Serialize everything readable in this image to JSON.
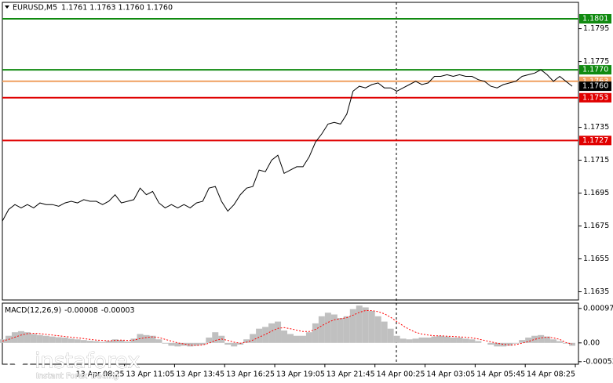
{
  "header": {
    "symbol": "EURUSD,M5",
    "ohlc": "1.1761 1.1763 1.1760 1.1760"
  },
  "watermark": {
    "name": "instaforex",
    "tagline": "Instant Forex Trading"
  },
  "chart_data": [
    {
      "type": "line",
      "color": "#000000",
      "values": [
        1.1678,
        1.1685,
        1.1688,
        1.1686,
        1.1688,
        1.1686,
        1.1689,
        1.1688,
        1.1688,
        1.1687,
        1.1689,
        1.169,
        1.1689,
        1.1691,
        1.169,
        1.169,
        1.1688,
        1.169,
        1.1694,
        1.1689,
        1.169,
        1.1691,
        1.1698,
        1.1694,
        1.1696,
        1.1689,
        1.1686,
        1.1688,
        1.1686,
        1.1688,
        1.1686,
        1.1689,
        1.169,
        1.1698,
        1.1699,
        1.169,
        1.1684,
        1.1688,
        1.1694,
        1.1698,
        1.1699,
        1.1709,
        1.1708,
        1.1715,
        1.1718,
        1.1707,
        1.1709,
        1.1711,
        1.1711,
        1.1717,
        1.1726,
        1.1731,
        1.1737,
        1.1738,
        1.1737,
        1.1743,
        1.1757,
        1.176,
        1.1759,
        1.1761,
        1.1762,
        1.1759,
        1.1759,
        1.1757,
        1.1759,
        1.1761,
        1.1763,
        1.1761,
        1.1762,
        1.1766,
        1.1766,
        1.1767,
        1.1766,
        1.1767,
        1.1766,
        1.1766,
        1.1764,
        1.1763,
        1.176,
        1.1759,
        1.1761,
        1.1762,
        1.1763,
        1.1766,
        1.1767,
        1.1768,
        1.177,
        1.1767,
        1.1763,
        1.1766,
        1.1763,
        1.176
      ],
      "xlim": [
        0,
        92
      ],
      "ylim": [
        1.163,
        1.1811
      ],
      "yticks": [
        1.1795,
        1.1775,
        1.1735,
        1.1715,
        1.1695,
        1.1675,
        1.1655,
        1.1635
      ],
      "levels": [
        {
          "value": 1.1801,
          "color": "#108a10"
        },
        {
          "value": 1.177,
          "label": "1.1770",
          "color": "#108a10"
        },
        {
          "value": 1.1763,
          "color": "#f0a060"
        },
        {
          "value": 1.1753,
          "color": "#e00000"
        },
        {
          "value": 1.1727,
          "color": "#e00000"
        }
      ],
      "last_price": {
        "value": 1.176,
        "label": "1.1760",
        "color": "#000000"
      }
    },
    {
      "type": "combo",
      "title": "MACD(12,26,9)",
      "series": [
        {
          "type": "bar",
          "color": "#c0c0c0",
          "values": [
            0.0001,
            0.0002,
            0.0003,
            0.00033,
            0.0003,
            0.00025,
            0.00022,
            0.0002,
            0.00018,
            0.00016,
            0.00015,
            0.00012,
            0.0001,
            8e-05,
            6e-05,
            5e-05,
            3e-05,
            6e-05,
            0.0001,
            8e-05,
            4e-05,
            0.00012,
            0.00025,
            0.00022,
            0.0002,
            0.0001,
            -2e-05,
            -8e-05,
            -0.0001,
            -8e-05,
            -0.0001,
            -8e-05,
            -5e-05,
            0.00015,
            0.0003,
            0.0002,
            -5e-05,
            -0.0001,
            -5e-05,
            0.0001,
            0.00025,
            0.0004,
            0.00045,
            0.00055,
            0.0006,
            0.00035,
            0.00025,
            0.0002,
            0.0002,
            0.0003,
            0.00055,
            0.00075,
            0.00085,
            0.0008,
            0.0007,
            0.00075,
            0.00095,
            0.00105,
            0.001,
            0.0009,
            0.00075,
            0.0006,
            0.0004,
            0.0002,
            0.00012,
            0.0001,
            0.00012,
            0.00015,
            0.00015,
            0.00018,
            0.0002,
            0.00018,
            0.00015,
            0.00015,
            0.00012,
            0.0001,
            5e-05,
            0,
            -5e-05,
            -0.0001,
            -0.0001,
            -8e-05,
            -2e-05,
            8e-05,
            0.00015,
            0.0002,
            0.00022,
            0.00018,
            0.0001,
            5e-05,
            -2e-05,
            -8e-05
          ]
        },
        {
          "type": "line",
          "color": "#ff0000",
          "dashed": true,
          "values": [
            5e-05,
            0.0001,
            0.00016,
            0.00022,
            0.00026,
            0.00027,
            0.00026,
            0.00024,
            0.00022,
            0.0002,
            0.00018,
            0.00016,
            0.00014,
            0.00012,
            0.0001,
            8e-05,
            7e-05,
            6e-05,
            7e-05,
            8e-05,
            7e-05,
            8e-05,
            0.00012,
            0.00015,
            0.00017,
            0.00015,
            0.0001,
            5e-05,
            0,
            -3e-05,
            -6e-05,
            -7e-05,
            -6e-05,
            -1e-05,
            7e-05,
            0.00011,
            7e-05,
            2e-05,
            -1e-05,
            2e-05,
            8e-05,
            0.00016,
            0.00024,
            0.00033,
            0.00041,
            0.00043,
            0.0004,
            0.00036,
            0.00032,
            0.00032,
            0.00038,
            0.00048,
            0.00058,
            0.00065,
            0.00068,
            0.00071,
            0.00078,
            0.00086,
            0.00091,
            0.00091,
            0.00088,
            0.00082,
            0.00072,
            0.0006,
            0.00048,
            0.00038,
            0.0003,
            0.00025,
            0.00022,
            0.0002,
            0.0002,
            0.00019,
            0.00018,
            0.00017,
            0.00016,
            0.00014,
            0.00011,
            7e-05,
            3e-05,
            -1e-05,
            -4e-05,
            -6e-05,
            -5e-05,
            -1e-05,
            4e-05,
            0.0001,
            0.00014,
            0.00016,
            0.00014,
            0.0001,
            1e-05,
            -3e-05
          ]
        }
      ],
      "xlim": [
        0,
        92
      ],
      "ylim": [
        -0.0006,
        0.00112
      ],
      "yticks": [
        0.00097,
        {
          "value": 0,
          "label": "0.00"
        },
        -0.00053
      ],
      "xticks": [
        {
          "value": 19.5,
          "label": "13 Apr 08:25"
        },
        {
          "value": 27.5,
          "label": "13 Apr 11:05"
        },
        {
          "value": 35.5,
          "label": "13 Apr 13:45"
        },
        {
          "value": 43.5,
          "label": "13 Apr 16:25"
        },
        {
          "value": 51.5,
          "label": "13 Apr 19:05"
        },
        {
          "value": 59.5,
          "label": "13 Apr 21:45"
        },
        {
          "value": 67.5,
          "label": "14 Apr 00:25"
        },
        {
          "value": 75.5,
          "label": "14 Apr 03:05"
        },
        {
          "value": 83.5,
          "label": "14 Apr 05:45"
        },
        {
          "value": 91.5,
          "label": "14 Apr 08:25"
        }
      ]
    }
  ]
}
